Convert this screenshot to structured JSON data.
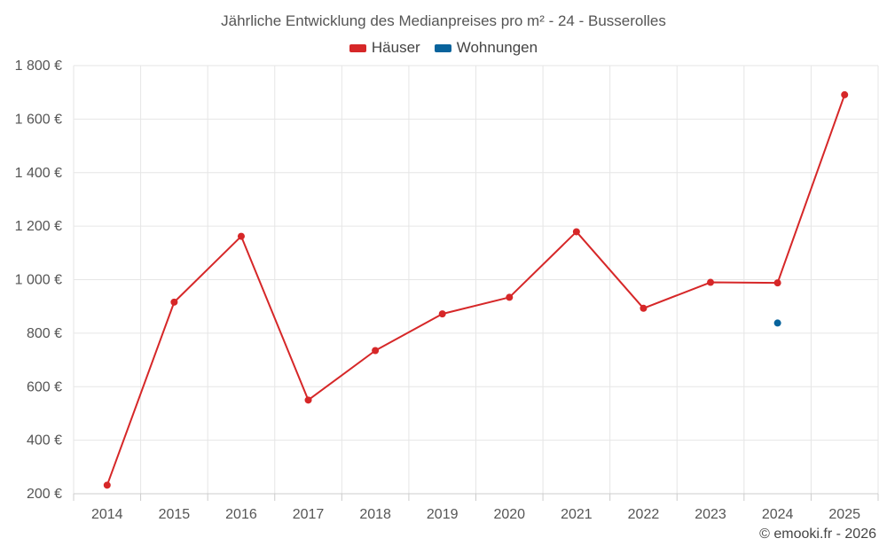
{
  "chart_data": {
    "type": "line",
    "title": "Jährliche Entwicklung des Medianpreises pro m² - 24 - Busserolles",
    "x": [
      "2014",
      "2015",
      "2016",
      "2017",
      "2018",
      "2019",
      "2020",
      "2021",
      "2022",
      "2023",
      "2024",
      "2025"
    ],
    "series": [
      {
        "name": "Häuser",
        "color": "#d62728",
        "values": [
          232,
          916,
          1162,
          550,
          735,
          872,
          934,
          1179,
          893,
          990,
          988,
          1691
        ]
      },
      {
        "name": "Wohnungen",
        "color": "#08639c",
        "values": [
          null,
          null,
          null,
          null,
          null,
          null,
          null,
          null,
          null,
          null,
          838,
          null
        ]
      }
    ],
    "ylim": [
      200,
      1800
    ],
    "yticks": [
      200,
      400,
      600,
      800,
      1000,
      1200,
      1400,
      1600,
      1800
    ],
    "ytick_labels": [
      "200 €",
      "400 €",
      "600 €",
      "800 €",
      "1 000 €",
      "1 200 €",
      "1 400 €",
      "1 600 €",
      "1 800 €"
    ],
    "grid": true,
    "legend_position": "top-center"
  },
  "credit": "© emooki.fr - 2026"
}
